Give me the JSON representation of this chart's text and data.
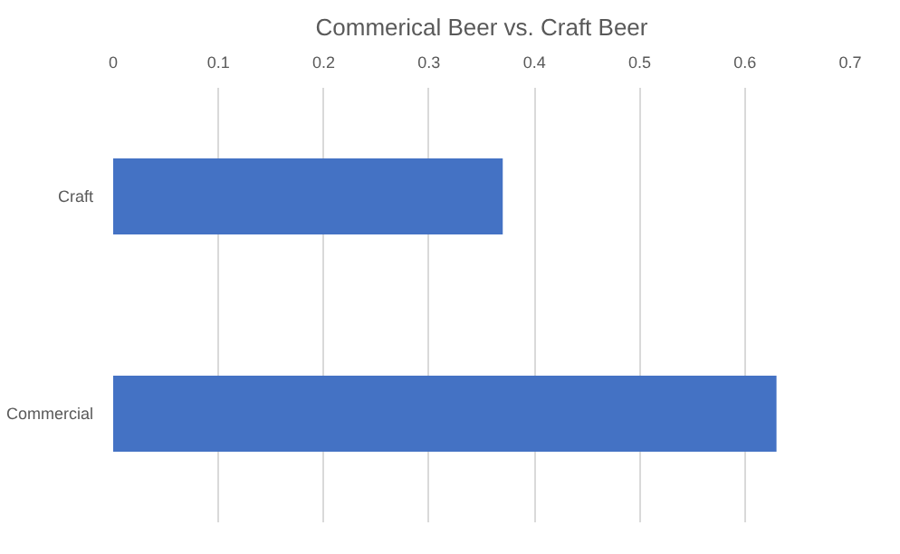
{
  "chart_data": {
    "type": "bar",
    "orientation": "horizontal",
    "title": "Commerical Beer vs. Craft Beer",
    "categories": [
      "Craft",
      "Commercial"
    ],
    "values": [
      0.37,
      0.63
    ],
    "color": "#4472c4",
    "xlim": [
      0,
      0.7
    ],
    "xticks": [
      0,
      0.1,
      0.2,
      0.3,
      0.4,
      0.5,
      0.6,
      0.7
    ],
    "grid": "x"
  }
}
